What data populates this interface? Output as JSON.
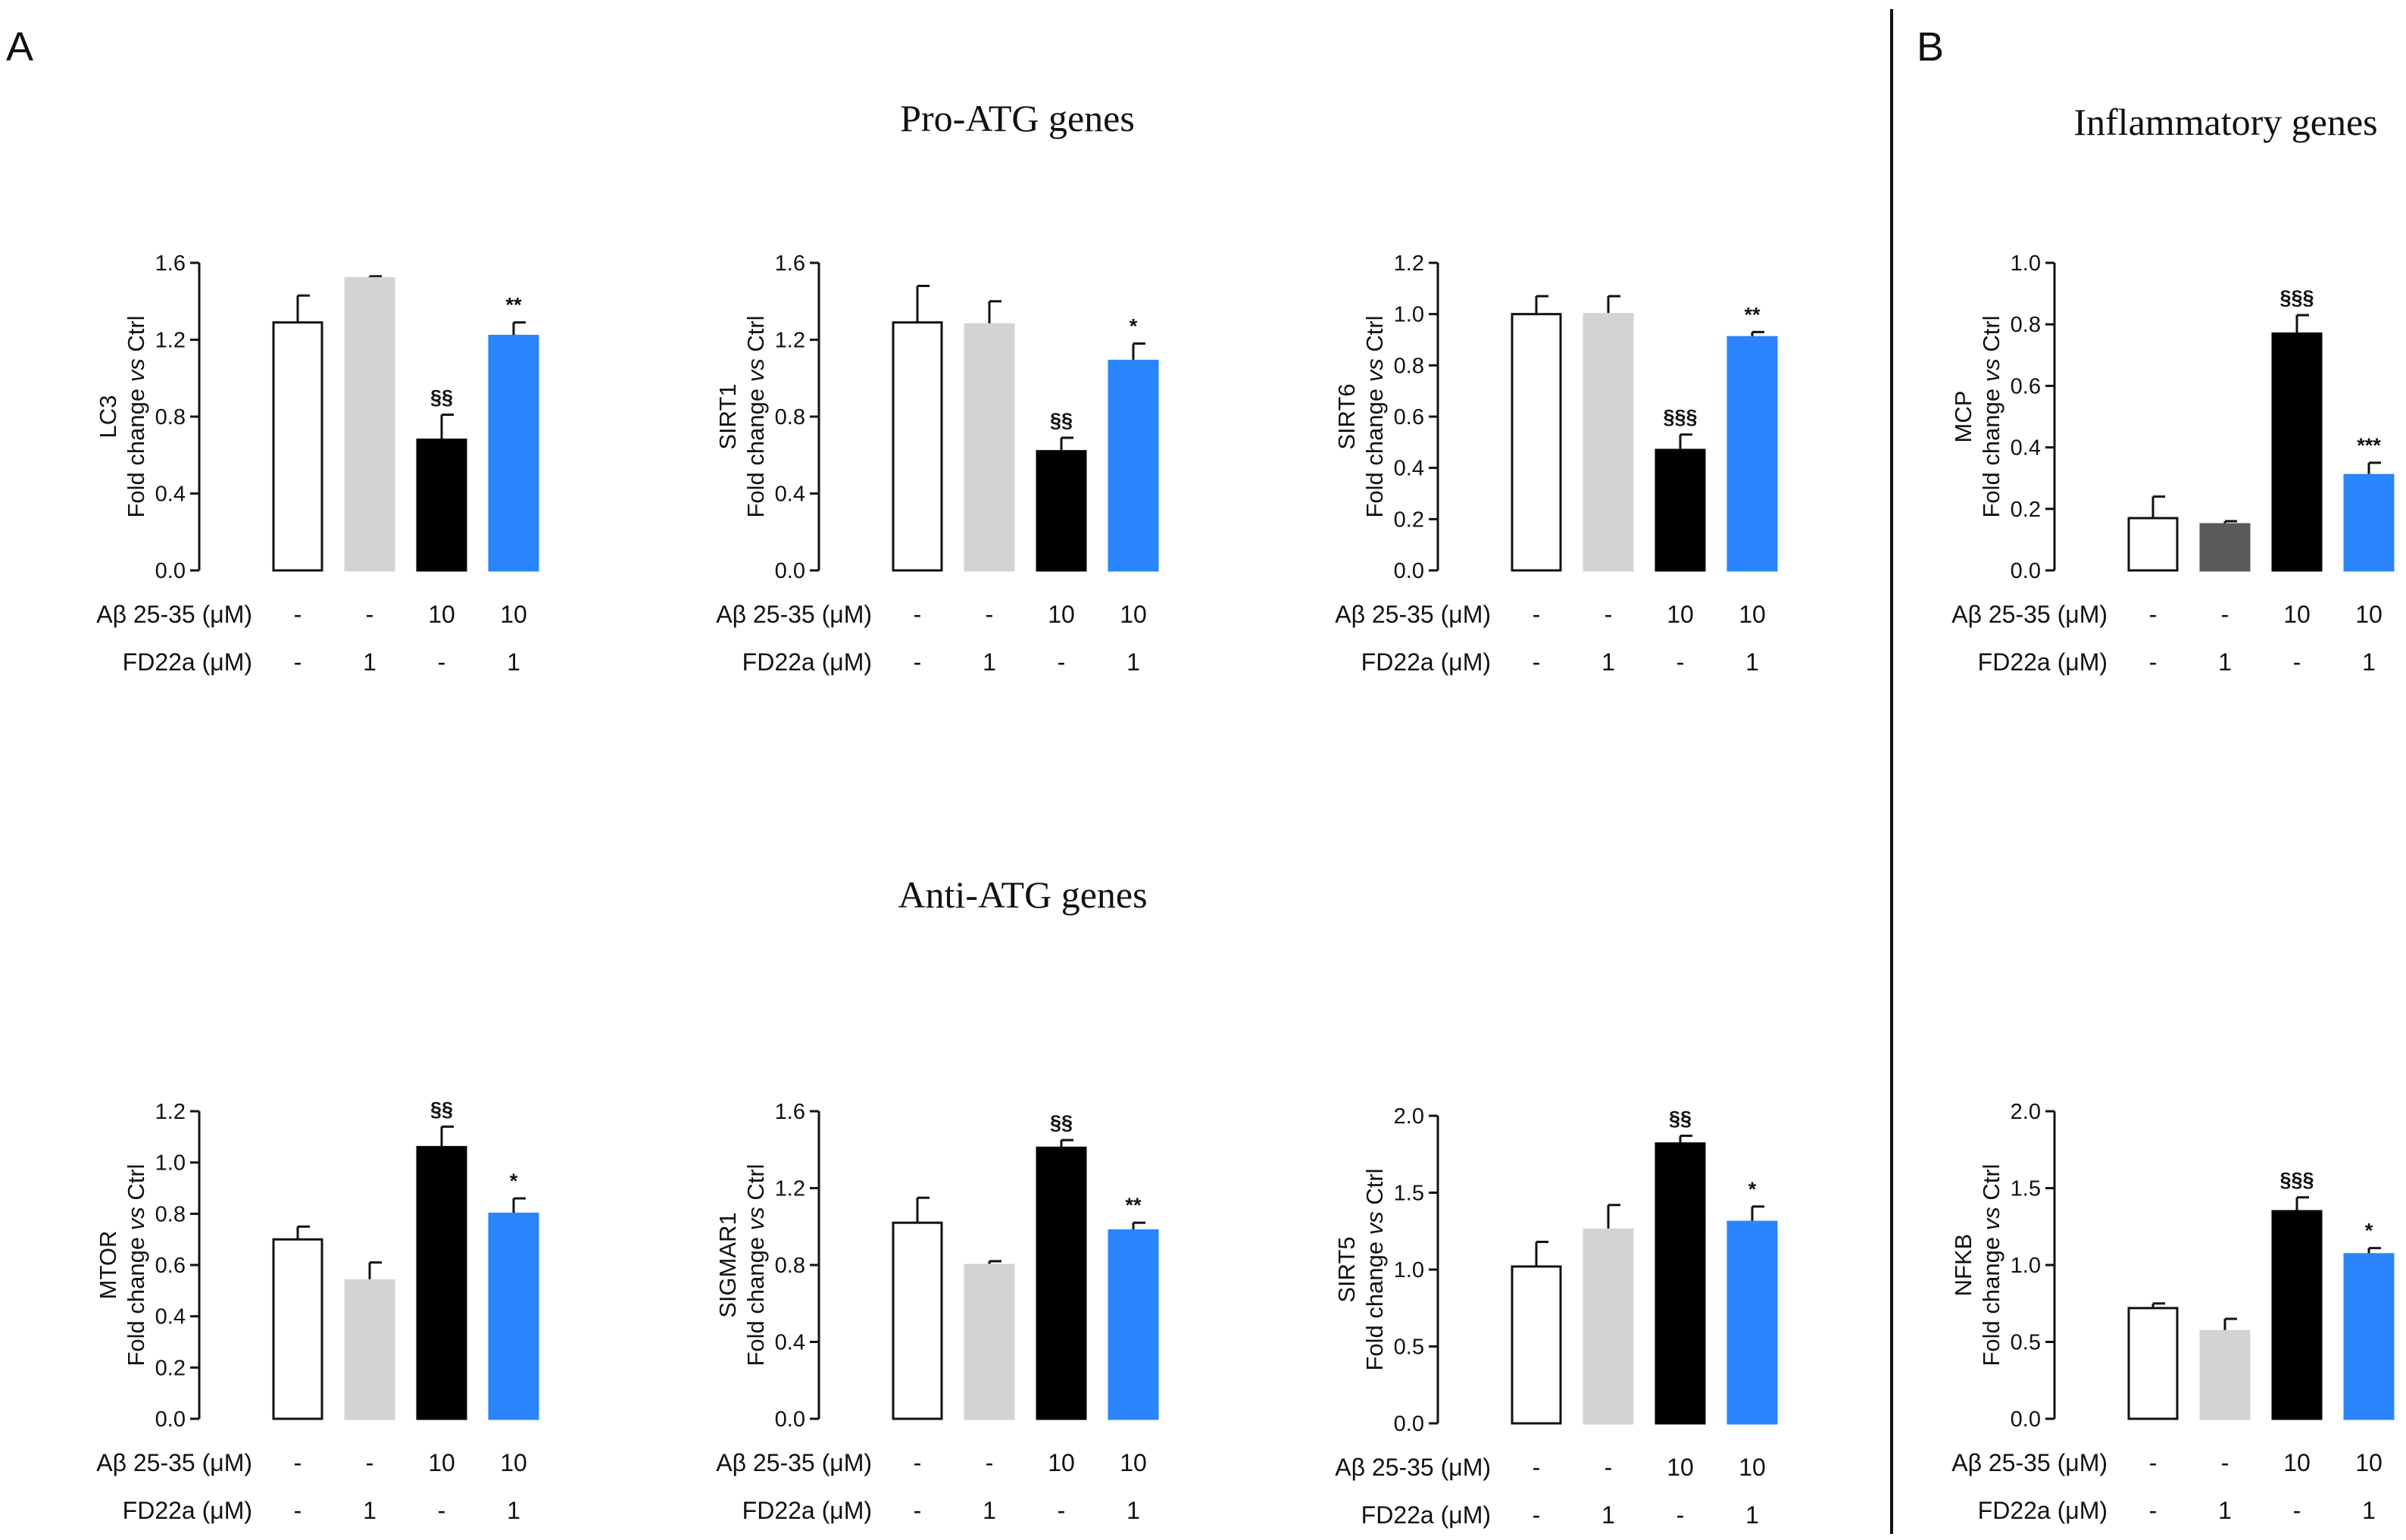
{
  "panel_labels": {
    "A": "A",
    "B": "B"
  },
  "section_titles": {
    "pro": "Pro-ATG genes",
    "anti": "Anti-ATG genes",
    "inflammatory": "Inflammatory genes"
  },
  "colors": [
    "#ffffff",
    "#d3d3d3",
    "#000000",
    "#2a84fb"
  ],
  "colors_mcp": [
    "#ffffff",
    "#5a5a5a",
    "#000000",
    "#2a84fb"
  ],
  "treatments": {
    "abeta_label": "Aβ 25-35 (μM)",
    "fd_label": "FD22a (μM)",
    "abeta": [
      "-",
      "-",
      "10",
      "10"
    ],
    "fd": [
      "-",
      "1",
      "-",
      "1"
    ]
  },
  "ylabel_line2": "Fold change vs Ctrl",
  "chart_data": [
    {
      "id": "lc3",
      "type": "bar",
      "gene": "LC3",
      "ylim": [
        0,
        1.6
      ],
      "ticks": [
        "0.0",
        "0.4",
        "0.8",
        "1.2",
        "1.6"
      ],
      "categories": [
        "Ctrl",
        "FD22a 1",
        "Aβ 10",
        "Aβ 10 + FD22a 1"
      ],
      "values": [
        1.29,
        1.52,
        0.68,
        1.22
      ],
      "errors": [
        0.14,
        0.01,
        0.13,
        0.07
      ],
      "annotations": [
        "",
        "",
        "§§",
        "**"
      ]
    },
    {
      "id": "sirt1",
      "type": "bar",
      "gene": "SIRT1",
      "ylim": [
        0,
        1.6
      ],
      "ticks": [
        "0.0",
        "0.4",
        "0.8",
        "1.2",
        "1.6"
      ],
      "categories": [
        "Ctrl",
        "FD22a 1",
        "Aβ 10",
        "Aβ 10 + FD22a 1"
      ],
      "values": [
        1.29,
        1.28,
        0.62,
        1.09
      ],
      "errors": [
        0.19,
        0.12,
        0.07,
        0.09
      ],
      "annotations": [
        "",
        "",
        "§§",
        "*"
      ]
    },
    {
      "id": "sirt6",
      "type": "bar",
      "gene": "SIRT6",
      "ylim": [
        0,
        1.2
      ],
      "ticks": [
        "0.0",
        "0.2",
        "0.4",
        "0.6",
        "0.8",
        "1.0",
        "1.2"
      ],
      "categories": [
        "Ctrl",
        "FD22a 1",
        "Aβ 10",
        "Aβ 10 + FD22a 1"
      ],
      "values": [
        1.0,
        1.0,
        0.47,
        0.91
      ],
      "errors": [
        0.07,
        0.07,
        0.06,
        0.02
      ],
      "annotations": [
        "",
        "",
        "§§§",
        "**"
      ]
    },
    {
      "id": "mcp",
      "type": "bar",
      "gene": "MCP",
      "ylim": [
        0,
        1.0
      ],
      "ticks": [
        "0.0",
        "0.2",
        "0.4",
        "0.6",
        "0.8",
        "1.0"
      ],
      "categories": [
        "Ctrl",
        "FD22a 1",
        "Aβ 10",
        "Aβ 10 + FD22a 1"
      ],
      "values": [
        0.17,
        0.15,
        0.77,
        0.31
      ],
      "errors": [
        0.07,
        0.01,
        0.06,
        0.04
      ],
      "annotations": [
        "",
        "",
        "§§§",
        "***"
      ]
    },
    {
      "id": "mtor",
      "type": "bar",
      "gene": "MTOR",
      "ylim": [
        0,
        1.2
      ],
      "ticks": [
        "0.0",
        "0.2",
        "0.4",
        "0.6",
        "0.8",
        "1.0",
        "1.2"
      ],
      "categories": [
        "Ctrl",
        "FD22a 1",
        "Aβ 10",
        "Aβ 10 + FD22a 1"
      ],
      "values": [
        0.7,
        0.54,
        1.06,
        0.8
      ],
      "errors": [
        0.05,
        0.07,
        0.08,
        0.06
      ],
      "annotations": [
        "",
        "",
        "§§",
        "*"
      ]
    },
    {
      "id": "sigmar1",
      "type": "bar",
      "gene": "SIGMAR1",
      "ylim": [
        0,
        1.6
      ],
      "ticks": [
        "0.0",
        "0.4",
        "0.8",
        "1.2",
        "1.6"
      ],
      "categories": [
        "Ctrl",
        "FD22a 1",
        "Aβ 10",
        "Aβ 10 + FD22a 1"
      ],
      "values": [
        1.02,
        0.8,
        1.41,
        0.98
      ],
      "errors": [
        0.13,
        0.02,
        0.04,
        0.04
      ],
      "annotations": [
        "",
        "",
        "§§",
        "**"
      ]
    },
    {
      "id": "sirt5",
      "type": "bar",
      "gene": "SIRT5",
      "ylim": [
        0,
        2.0
      ],
      "ticks": [
        "0.0",
        "0.5",
        "1.0",
        "1.5",
        "2.0"
      ],
      "categories": [
        "Ctrl",
        "FD22a 1",
        "Aβ 10",
        "Aβ 10 + FD22a 1"
      ],
      "values": [
        1.02,
        1.26,
        1.82,
        1.31
      ],
      "errors": [
        0.16,
        0.16,
        0.05,
        0.1
      ],
      "annotations": [
        "",
        "",
        "§§",
        "*"
      ]
    },
    {
      "id": "nfkb",
      "type": "bar",
      "gene": "NFKB",
      "ylim": [
        0,
        2.0
      ],
      "ticks": [
        "0.0",
        "0.5",
        "1.0",
        "1.5",
        "2.0"
      ],
      "categories": [
        "Ctrl",
        "FD22a 1",
        "Aβ 10",
        "Aβ 10 + FD22a 1"
      ],
      "values": [
        0.72,
        0.57,
        1.35,
        1.07
      ],
      "errors": [
        0.03,
        0.08,
        0.09,
        0.04
      ],
      "annotations": [
        "",
        "",
        "§§§",
        "*"
      ]
    }
  ]
}
